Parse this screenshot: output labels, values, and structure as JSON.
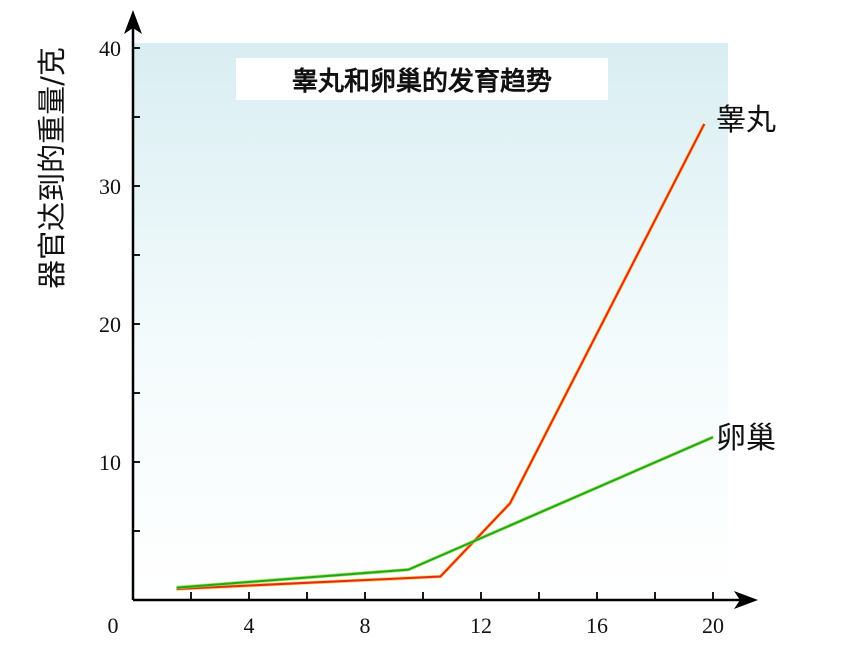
{
  "chart_data": {
    "type": "line",
    "title": "睾丸和卵巢的发育趋势",
    "ylabel": "器官达到的重量/克",
    "xlabel": "",
    "xlim": [
      0,
      20
    ],
    "ylim": [
      0,
      40
    ],
    "x_ticks": [
      "0",
      "4",
      "8",
      "12",
      "16",
      "20"
    ],
    "y_ticks": [
      "10",
      "20",
      "30",
      "40"
    ],
    "grid": false,
    "legend": "inline-right",
    "series": [
      {
        "name": "睾丸",
        "color": "#e8261c",
        "x": [
          1.5,
          10.6,
          13,
          19.7
        ],
        "y": [
          0.8,
          1.7,
          7.0,
          34.5
        ]
      },
      {
        "name": "卵巢",
        "color": "#1aaa1a",
        "x": [
          1.5,
          9.5,
          20
        ],
        "y": [
          0.9,
          2.2,
          11.8
        ]
      }
    ]
  }
}
